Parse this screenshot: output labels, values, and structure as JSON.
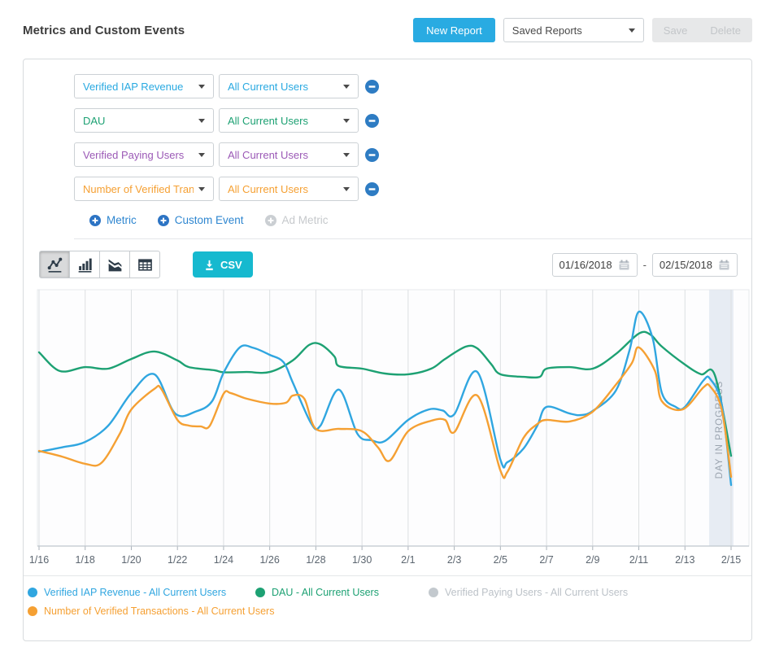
{
  "header": {
    "title": "Metrics and Custom Events",
    "new_report_label": "New Report",
    "saved_reports_label": "Saved Reports",
    "save_label": "Save",
    "delete_label": "Delete"
  },
  "metric_rows": [
    {
      "metric": "Verified IAP Revenue",
      "segment": "All Current Users",
      "color": "#29a9e1"
    },
    {
      "metric": "DAU",
      "segment": "All Current Users",
      "color": "#1da173"
    },
    {
      "metric": "Verified Paying Users",
      "segment": "All Current Users",
      "color": "#9b59b6"
    },
    {
      "metric": "Number of Verified Trans...",
      "segment": "All Current Users",
      "color": "#f5a033"
    }
  ],
  "add_links": [
    {
      "label": "Metric",
      "enabled": true
    },
    {
      "label": "Custom Event",
      "enabled": true
    },
    {
      "label": "Ad Metric",
      "enabled": false
    }
  ],
  "toolbar": {
    "chart_types": [
      "line",
      "bar",
      "area",
      "table"
    ],
    "selected_chart_type": "line",
    "csv_label": "CSV",
    "date_start": "01/16/2018",
    "date_separator": "-",
    "date_end": "02/15/2018"
  },
  "chart_data": {
    "type": "line",
    "title": "",
    "xlabel": "",
    "ylabel": "",
    "x_unit": "days since 1/16/2018",
    "x_tick_labels": [
      "1/16",
      "1/18",
      "1/20",
      "1/22",
      "1/24",
      "1/26",
      "1/28",
      "1/30",
      "2/1",
      "2/3",
      "2/5",
      "2/7",
      "2/9",
      "2/11",
      "2/13",
      "2/15"
    ],
    "x_tick_days": [
      0,
      2,
      4,
      6,
      8,
      10,
      12,
      14,
      16,
      18,
      20,
      22,
      24,
      26,
      28,
      30
    ],
    "x_range": [
      0,
      30.8
    ],
    "ylim": [
      0,
      100
    ],
    "y_axis_shown": false,
    "grid": "vertical-only",
    "annotation_band": {
      "label": "DAY IN PROGRESS",
      "day_start": 29.05,
      "day_end": 30.1,
      "fill": "#dfe5ef",
      "text_color": "#9aa3ae"
    },
    "series": [
      {
        "name": "DAU - All Current Users",
        "color": "#1da173",
        "visible": true,
        "points": [
          [
            0,
            75.6
          ],
          [
            0.9,
            68.3
          ],
          [
            2,
            69.8
          ],
          [
            3,
            69.2
          ],
          [
            4,
            73
          ],
          [
            5,
            75.9
          ],
          [
            6,
            72.4
          ],
          [
            6.5,
            69.8
          ],
          [
            7.6,
            68.6
          ],
          [
            8,
            67.8
          ],
          [
            9,
            67.9
          ],
          [
            10,
            67.9
          ],
          [
            11,
            72.4
          ],
          [
            11.7,
            78.4
          ],
          [
            12.2,
            78.7
          ],
          [
            12.8,
            74
          ],
          [
            13,
            70.2
          ],
          [
            14,
            69.2
          ],
          [
            15,
            67.3
          ],
          [
            16,
            67
          ],
          [
            17,
            69.2
          ],
          [
            17.6,
            73
          ],
          [
            18.5,
            77.8
          ],
          [
            19,
            77.1
          ],
          [
            19.6,
            71
          ],
          [
            20,
            67
          ],
          [
            21,
            66
          ],
          [
            21.7,
            66
          ],
          [
            22,
            69.2
          ],
          [
            23,
            69.8
          ],
          [
            24,
            69.2
          ],
          [
            25,
            74.9
          ],
          [
            26,
            82.9
          ],
          [
            26.5,
            82.5
          ],
          [
            27,
            77.8
          ],
          [
            28,
            70.8
          ],
          [
            28.7,
            67
          ],
          [
            29.3,
            66.6
          ],
          [
            30,
            35.2
          ]
        ]
      },
      {
        "name": "Verified IAP Revenue - All Current Users",
        "color": "#30a6e0",
        "visible": true,
        "points": [
          [
            0,
            36.8
          ],
          [
            1,
            38.5
          ],
          [
            2,
            40.6
          ],
          [
            3,
            47
          ],
          [
            4,
            59.7
          ],
          [
            5,
            67
          ],
          [
            5.9,
            51.7
          ],
          [
            6.8,
            52.5
          ],
          [
            7.5,
            56.5
          ],
          [
            8,
            67.6
          ],
          [
            8.7,
            77.5
          ],
          [
            9.3,
            77.3
          ],
          [
            10,
            74.6
          ],
          [
            10.6,
            71.7
          ],
          [
            11,
            63.8
          ],
          [
            11.8,
            47.8
          ],
          [
            12.2,
            47
          ],
          [
            13,
            61
          ],
          [
            13.8,
            43.8
          ],
          [
            14.4,
            41.3
          ],
          [
            15,
            41
          ],
          [
            16,
            49.2
          ],
          [
            16.9,
            53.3
          ],
          [
            17.5,
            52.9
          ],
          [
            18,
            51.4
          ],
          [
            19,
            67.9
          ],
          [
            20,
            33.7
          ],
          [
            20.3,
            32.7
          ],
          [
            21,
            38
          ],
          [
            21.6,
            47
          ],
          [
            22,
            54.3
          ],
          [
            23,
            51.7
          ],
          [
            23.5,
            51.1
          ],
          [
            24,
            52.7
          ],
          [
            25,
            60.6
          ],
          [
            25.6,
            76.5
          ],
          [
            26,
            91.4
          ],
          [
            26.6,
            81
          ],
          [
            27,
            59.7
          ],
          [
            27.6,
            54.3
          ],
          [
            28,
            54.3
          ],
          [
            28.8,
            64.6
          ],
          [
            29.1,
            65.1
          ],
          [
            29.6,
            55
          ],
          [
            30,
            23.8
          ]
        ]
      },
      {
        "name": "Verified Paying Users - All Current Users",
        "color": "#c3c9ce",
        "visible": false,
        "points": []
      },
      {
        "name": "Number of Verified Transactions - All Current Users",
        "color": "#f5a033",
        "visible": true,
        "points": [
          [
            0,
            37.1
          ],
          [
            1,
            34.9
          ],
          [
            2,
            32.1
          ],
          [
            2.7,
            32.4
          ],
          [
            3.5,
            43.8
          ],
          [
            4,
            53.3
          ],
          [
            5,
            61.3
          ],
          [
            5.3,
            61.3
          ],
          [
            6,
            49.2
          ],
          [
            6.5,
            47
          ],
          [
            7,
            46.7
          ],
          [
            7.4,
            46.9
          ],
          [
            8,
            59.4
          ],
          [
            8.3,
            59.7
          ],
          [
            9,
            57.5
          ],
          [
            10,
            55.6
          ],
          [
            10.7,
            55.9
          ],
          [
            11,
            58.7
          ],
          [
            11.5,
            57.5
          ],
          [
            12,
            45.7
          ],
          [
            13,
            45.7
          ],
          [
            14,
            44.8
          ],
          [
            14.7,
            38.4
          ],
          [
            15.2,
            33.3
          ],
          [
            16,
            44.8
          ],
          [
            17,
            48.9
          ],
          [
            17.6,
            49.2
          ],
          [
            18,
            44.4
          ],
          [
            19,
            58.7
          ],
          [
            20,
            29.5
          ],
          [
            20.3,
            28.9
          ],
          [
            21,
            42.2
          ],
          [
            21.6,
            47.6
          ],
          [
            22,
            49.2
          ],
          [
            23,
            48.6
          ],
          [
            24,
            52.4
          ],
          [
            25,
            62.9
          ],
          [
            25.7,
            71.4
          ],
          [
            26,
            77.5
          ],
          [
            26.7,
            68.3
          ],
          [
            27,
            56.5
          ],
          [
            27.9,
            53.3
          ],
          [
            28.8,
            61.9
          ],
          [
            29.1,
            62.2
          ],
          [
            29.6,
            53
          ],
          [
            30,
            27
          ]
        ]
      }
    ]
  },
  "legend": [
    {
      "label": "Verified IAP Revenue - All Current Users",
      "color": "#30a6e0",
      "text_color": "#30a6e0",
      "active": true
    },
    {
      "label": "DAU - All Current Users",
      "color": "#1da173",
      "text_color": "#1da173",
      "active": true
    },
    {
      "label": "Verified Paying Users - All Current Users",
      "color": "#c3c9ce",
      "text_color": "#bcc2c8",
      "active": false
    },
    {
      "label": "Number of Verified Transactions - All Current Users",
      "color": "#f5a033",
      "text_color": "#f5a033",
      "active": true
    }
  ],
  "colors": {
    "accent_blue": "#29abe2",
    "csv_teal": "#16b9cf",
    "remove_button_blue": "#2e7cc3",
    "add_link_blue": "#2e86d0",
    "axis_label": "#5c6670",
    "gridline": "#dcdfe2"
  }
}
